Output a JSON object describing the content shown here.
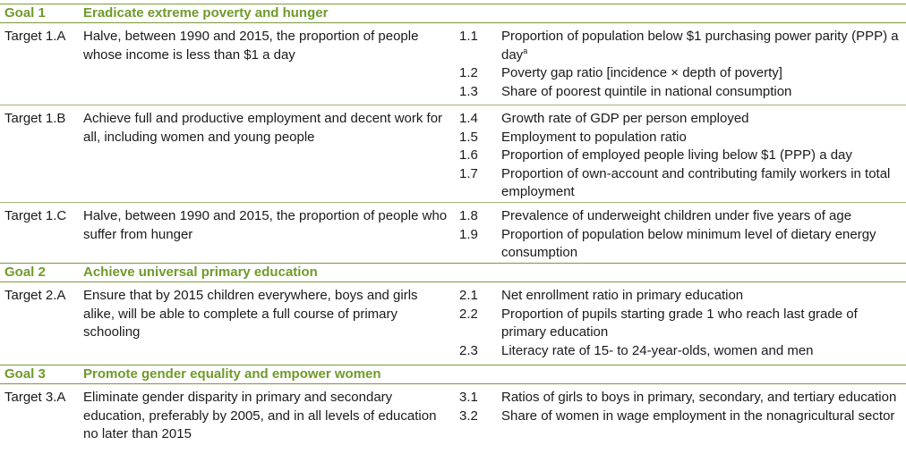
{
  "goals": [
    {
      "label": "Goal 1",
      "title": "Eradicate extreme poverty and hunger",
      "targets": [
        {
          "label": "Target 1.A",
          "text": "Halve, between 1990 and 2015, the proportion of people whose income is less than $1 a day",
          "indicators": [
            {
              "num": "1.1",
              "text": "Proportion of population below $1 purchasing power parity (PPP) a day",
              "sup": "a"
            },
            {
              "num": "1.2",
              "text": "Poverty gap ratio [incidence × depth of poverty]"
            },
            {
              "num": "1.3",
              "text": "Share of poorest quintile in national consumption"
            }
          ]
        },
        {
          "label": "Target 1.B",
          "text": "Achieve full and productive employment and decent work for all, including women and young people",
          "indicators": [
            {
              "num": "1.4",
              "text": "Growth rate of GDP per person employed"
            },
            {
              "num": "1.5",
              "text": "Employment to population ratio"
            },
            {
              "num": "1.6",
              "text": "Proportion of employed people living below $1 (PPP) a day"
            },
            {
              "num": "1.7",
              "text": "Proportion of own-account and contributing family workers in total employment"
            }
          ]
        },
        {
          "label": "Target 1.C",
          "text": "Halve, between 1990 and 2015, the proportion of people who suffer from hunger",
          "indicators": [
            {
              "num": "1.8",
              "text": "Prevalence of underweight children under five years of age"
            },
            {
              "num": "1.9",
              "text": "Proportion of population below minimum level of dietary energy consumption"
            }
          ]
        }
      ]
    },
    {
      "label": "Goal 2",
      "title": "Achieve universal primary education",
      "targets": [
        {
          "label": "Target 2.A",
          "text": "Ensure that by 2015 children everywhere, boys and girls alike, will be able to complete a full course of primary schooling",
          "indicators": [
            {
              "num": "2.1",
              "text": "Net enrollment ratio in primary education"
            },
            {
              "num": "2.2",
              "text": "Proportion of pupils starting grade 1 who reach last grade of primary education"
            },
            {
              "num": "2.3",
              "text": "Literacy rate of 15- to 24-year-olds, women and men"
            }
          ]
        }
      ]
    },
    {
      "label": "Goal 3",
      "title": "Promote gender equality and empower women",
      "targets": [
        {
          "label": "Target 3.A",
          "text": "Eliminate gender disparity in primary and secondary education, preferably by 2005, and in all levels of education no later than 2015",
          "indicators": [
            {
              "num": "3.1",
              "text": "Ratios of girls to boys in primary, secondary, and tertiary education"
            },
            {
              "num": "3.2",
              "text": "Share of women in wage employment in the nonagricultural sector"
            }
          ]
        }
      ]
    }
  ]
}
